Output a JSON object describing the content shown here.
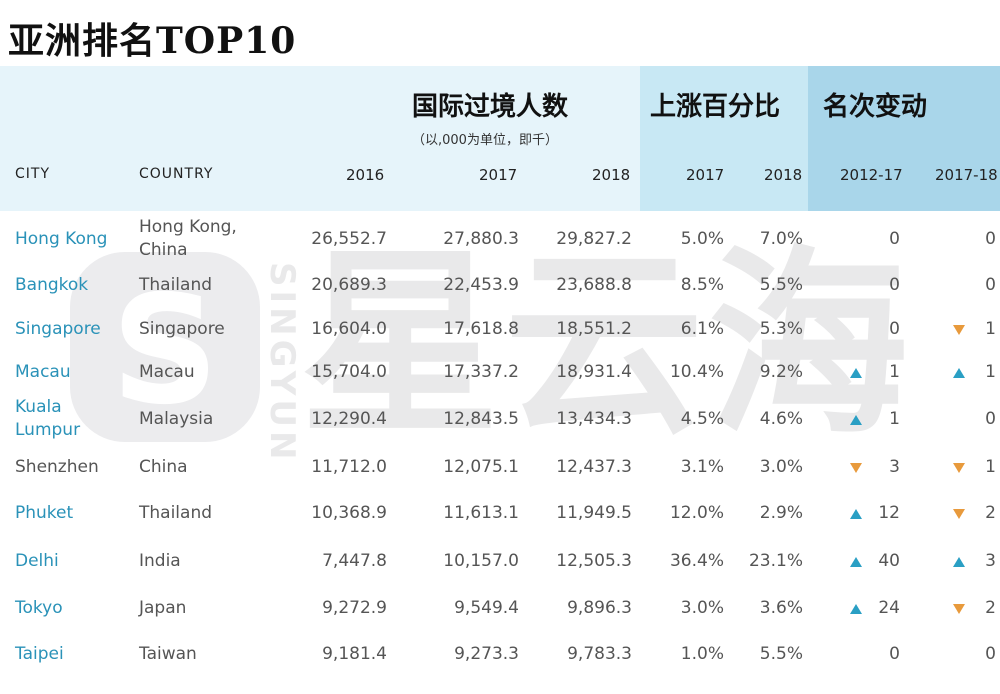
{
  "title": "亚洲排名TOP10",
  "watermark": {
    "brand_cn": "星云海",
    "brand_en": "SINGYUN"
  },
  "groups": {
    "arrivals": {
      "title": "国际过境人数",
      "subtitle": "（以,000为单位，即千）"
    },
    "growth": {
      "title": "上涨百分比"
    },
    "rank_change": {
      "title": "名次变动"
    }
  },
  "columns": [
    "CITY",
    "COUNTRY",
    "2016",
    "2017",
    "2018",
    "2017",
    "2018",
    "2012-17",
    "2017-18"
  ],
  "colors": {
    "city": "#2a92b8",
    "up": "#2a9fc4",
    "down": "#e89a3c",
    "header": "#e6f4fa"
  },
  "chart_data": {
    "type": "table",
    "title": "亚洲排名TOP10",
    "rows": [
      {
        "city": "Hong Kong",
        "country": "Hong Kong, China",
        "v2016": "26,552.7",
        "v2017": "27,880.3",
        "v2018": "29,827.2",
        "g2017": "5.0%",
        "g2018": "7.0%",
        "r1217": "0",
        "r1217_dir": "none",
        "r1718": "0",
        "r1718_dir": "none"
      },
      {
        "city": "Bangkok",
        "country": "Thailand",
        "v2016": "20,689.3",
        "v2017": "22,453.9",
        "v2018": "23,688.8",
        "g2017": "8.5%",
        "g2018": "5.5%",
        "r1217": "0",
        "r1217_dir": "none",
        "r1718": "0",
        "r1718_dir": "none"
      },
      {
        "city": "Singapore",
        "country": "Singapore",
        "v2016": "16,604.0",
        "v2017": "17,618.8",
        "v2018": "18,551.2",
        "g2017": "6.1%",
        "g2018": "5.3%",
        "r1217": "0",
        "r1217_dir": "none",
        "r1718": "1",
        "r1718_dir": "down"
      },
      {
        "city": "Macau",
        "country": "Macau",
        "v2016": "15,704.0",
        "v2017": "17,337.2",
        "v2018": "18,931.4",
        "g2017": "10.4%",
        "g2018": "9.2%",
        "r1217": "1",
        "r1217_dir": "up",
        "r1718": "1",
        "r1718_dir": "up"
      },
      {
        "city": "Kuala Lumpur",
        "country": "Malaysia",
        "v2016": "12,290.4",
        "v2017": "12,843.5",
        "v2018": "13,434.3",
        "g2017": "4.5%",
        "g2018": "4.6%",
        "r1217": "1",
        "r1217_dir": "up",
        "r1718": "0",
        "r1718_dir": "none"
      },
      {
        "city": "Shenzhen",
        "country": "China",
        "v2016": "11,712.0",
        "v2017": "12,075.1",
        "v2018": "12,437.3",
        "g2017": "3.1%",
        "g2018": "3.0%",
        "r1217": "3",
        "r1217_dir": "down",
        "r1718": "1",
        "r1718_dir": "down"
      },
      {
        "city": "Phuket",
        "country": "Thailand",
        "v2016": "10,368.9",
        "v2017": "11,613.1",
        "v2018": "11,949.5",
        "g2017": "12.0%",
        "g2018": "2.9%",
        "r1217": "12",
        "r1217_dir": "up",
        "r1718": "2",
        "r1718_dir": "down"
      },
      {
        "city": "Delhi",
        "country": "India",
        "v2016": "7,447.8",
        "v2017": "10,157.0",
        "v2018": "12,505.3",
        "g2017": "36.4%",
        "g2018": "23.1%",
        "r1217": "40",
        "r1217_dir": "up",
        "r1718": "3",
        "r1718_dir": "up"
      },
      {
        "city": "Tokyo",
        "country": "Japan",
        "v2016": "9,272.9",
        "v2017": "9,549.4",
        "v2018": "9,896.3",
        "g2017": "3.0%",
        "g2018": "3.6%",
        "r1217": "24",
        "r1217_dir": "up",
        "r1718": "2",
        "r1718_dir": "down"
      },
      {
        "city": "Taipei",
        "country": "Taiwan",
        "v2016": "9,181.4",
        "v2017": "9,273.3",
        "v2018": "9,783.3",
        "g2017": "1.0%",
        "g2018": "5.5%",
        "r1217": "0",
        "r1217_dir": "none",
        "r1718": "0",
        "r1718_dir": "none"
      }
    ]
  }
}
